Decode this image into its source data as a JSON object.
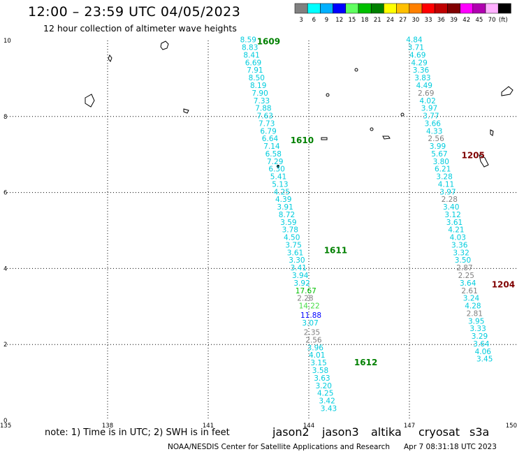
{
  "header": {
    "title": "12:00 – 23:59 UTC 04/05/2023",
    "subtitle": "12 hour collection of altimeter wave heights"
  },
  "colorbar": {
    "labels": [
      "3",
      "6",
      "9",
      "12",
      "15",
      "18",
      "21",
      "24",
      "27",
      "30",
      "33",
      "36",
      "39",
      "42",
      "45",
      "70",
      "(ft)"
    ],
    "colors": [
      "#808080",
      "#00ffff",
      "#00b0ff",
      "#0000ff",
      "#60ff60",
      "#00c000",
      "#008000",
      "#ffff00",
      "#ffc000",
      "#ff8000",
      "#ff0000",
      "#c00000",
      "#800000",
      "#ff00ff",
      "#b000b0",
      "#ffb0ff",
      "#000000"
    ]
  },
  "footer": {
    "note": "note:  1) Time is in UTC;  2) SWH is in feet",
    "credit": "NOAA/NESDIS Center for Satellite Applications and Research",
    "timestamp": "Apr  7 08:31:18 UTC 2023",
    "satellites": [
      {
        "name": "jason2",
        "color": "#0000cc"
      },
      {
        "name": "jason3",
        "color": "#008000"
      },
      {
        "name": "altika",
        "color": "#ff8c00"
      },
      {
        "name": "cryosat",
        "color": "#cc0000"
      },
      {
        "name": "s3a",
        "color": "#800000"
      }
    ]
  },
  "chart_data": {
    "type": "scatter",
    "xlabel": "",
    "ylabel": "",
    "xlim": [
      135,
      150
    ],
    "ylim": [
      0,
      10
    ],
    "x_ticks": [
      "135",
      "138",
      "141",
      "144",
      "147",
      "150"
    ],
    "y_ticks": [
      "0",
      "2",
      "4",
      "6",
      "8",
      "10"
    ],
    "grid": true,
    "tracks": [
      {
        "satellite": "jason3",
        "passes": [
          {
            "label": "1609",
            "lon": 142.8,
            "lat": 9.9
          },
          {
            "label": "1610",
            "lon": 143.8,
            "lat": 7.3
          },
          {
            "label": "1611",
            "lon": 144.8,
            "lat": 4.4
          },
          {
            "label": "1612",
            "lon": 145.7,
            "lat": 1.45
          }
        ],
        "points": [
          {
            "value": "8.59",
            "lon": 141.95,
            "lat": 9.95
          },
          {
            "value": "8.83",
            "lon": 142.0,
            "lat": 9.75
          },
          {
            "value": "8.41",
            "lon": 142.05,
            "lat": 9.55
          },
          {
            "value": "6.69",
            "lon": 142.1,
            "lat": 9.35
          },
          {
            "value": "7.91",
            "lon": 142.15,
            "lat": 9.15
          },
          {
            "value": "8.50",
            "lon": 142.2,
            "lat": 8.95
          },
          {
            "value": "8.19",
            "lon": 142.25,
            "lat": 8.75
          },
          {
            "value": "7.90",
            "lon": 142.3,
            "lat": 8.55
          },
          {
            "value": "7.33",
            "lon": 142.35,
            "lat": 8.35
          },
          {
            "value": "7.88",
            "lon": 142.4,
            "lat": 8.15
          },
          {
            "value": "7.63",
            "lon": 142.45,
            "lat": 7.95
          },
          {
            "value": "7.73",
            "lon": 142.5,
            "lat": 7.75
          },
          {
            "value": "6.79",
            "lon": 142.55,
            "lat": 7.55
          },
          {
            "value": "6.64",
            "lon": 142.6,
            "lat": 7.35
          },
          {
            "value": "7.14",
            "lon": 142.65,
            "lat": 7.15
          },
          {
            "value": "6.58",
            "lon": 142.7,
            "lat": 6.95
          },
          {
            "value": "7.29",
            "lon": 142.75,
            "lat": 6.75
          },
          {
            "value": "6.30",
            "lon": 142.8,
            "lat": 6.55
          },
          {
            "value": "5.41",
            "lon": 142.85,
            "lat": 6.35
          },
          {
            "value": "5.13",
            "lon": 142.9,
            "lat": 6.15
          },
          {
            "value": "4.25",
            "lon": 142.95,
            "lat": 5.95
          },
          {
            "value": "4.39",
            "lon": 143.0,
            "lat": 5.75
          },
          {
            "value": "3.91",
            "lon": 143.05,
            "lat": 5.55
          },
          {
            "value": "8.72",
            "lon": 143.1,
            "lat": 5.35
          },
          {
            "value": "3.59",
            "lon": 143.15,
            "lat": 5.15
          },
          {
            "value": "3.78",
            "lon": 143.2,
            "lat": 4.95
          },
          {
            "value": "4.50",
            "lon": 143.25,
            "lat": 4.75
          },
          {
            "value": "3.75",
            "lon": 143.3,
            "lat": 4.55
          },
          {
            "value": "3.61",
            "lon": 143.35,
            "lat": 4.35
          },
          {
            "value": "3.30",
            "lon": 143.4,
            "lat": 4.15
          },
          {
            "value": "3.41",
            "lon": 143.45,
            "lat": 3.95
          },
          {
            "value": "3.94",
            "lon": 143.5,
            "lat": 3.75
          },
          {
            "value": "3.92",
            "lon": 143.55,
            "lat": 3.55
          },
          {
            "value": "17.67",
            "lon": 143.6,
            "lat": 3.35
          },
          {
            "value": "2.28",
            "lon": 143.65,
            "lat": 3.15
          },
          {
            "value": "14.22",
            "lon": 143.7,
            "lat": 2.95
          },
          {
            "value": "11.88",
            "lon": 143.75,
            "lat": 2.7
          },
          {
            "value": "3.07",
            "lon": 143.8,
            "lat": 2.5
          },
          {
            "value": "2.35",
            "lon": 143.85,
            "lat": 2.25
          },
          {
            "value": "2.56",
            "lon": 143.9,
            "lat": 2.05
          },
          {
            "value": "3.96",
            "lon": 143.95,
            "lat": 1.85
          },
          {
            "value": "4.01",
            "lon": 144.0,
            "lat": 1.65
          },
          {
            "value": "3.15",
            "lon": 144.05,
            "lat": 1.45
          },
          {
            "value": "3.58",
            "lon": 144.1,
            "lat": 1.25
          },
          {
            "value": "3.63",
            "lon": 144.15,
            "lat": 1.05
          },
          {
            "value": "3.20",
            "lon": 144.2,
            "lat": 0.85
          },
          {
            "value": "4.25",
            "lon": 144.25,
            "lat": 0.65
          },
          {
            "value": "3.42",
            "lon": 144.3,
            "lat": 0.45
          },
          {
            "value": "3.43",
            "lon": 144.35,
            "lat": 0.25
          }
        ]
      },
      {
        "satellite": "s3a",
        "passes": [
          {
            "label": "1205",
            "lon": 148.9,
            "lat": 6.9
          },
          {
            "label": "1204",
            "lon": 149.8,
            "lat": 3.5
          }
        ],
        "points": [
          {
            "value": "4.84",
            "lon": 146.9,
            "lat": 9.95
          },
          {
            "value": "3.71",
            "lon": 146.95,
            "lat": 9.75
          },
          {
            "value": "4.69",
            "lon": 147.0,
            "lat": 9.55
          },
          {
            "value": "4.29",
            "lon": 147.05,
            "lat": 9.35
          },
          {
            "value": "3.36",
            "lon": 147.1,
            "lat": 9.15
          },
          {
            "value": "3.83",
            "lon": 147.15,
            "lat": 8.95
          },
          {
            "value": "4.49",
            "lon": 147.2,
            "lat": 8.75
          },
          {
            "value": "2.69",
            "lon": 147.25,
            "lat": 8.55
          },
          {
            "value": "4.02",
            "lon": 147.3,
            "lat": 8.35
          },
          {
            "value": "3.97",
            "lon": 147.35,
            "lat": 8.15
          },
          {
            "value": "3.77",
            "lon": 147.4,
            "lat": 7.95
          },
          {
            "value": "3.66",
            "lon": 147.45,
            "lat": 7.75
          },
          {
            "value": "4.33",
            "lon": 147.5,
            "lat": 7.55
          },
          {
            "value": "2.56",
            "lon": 147.55,
            "lat": 7.35
          },
          {
            "value": "3.99",
            "lon": 147.6,
            "lat": 7.15
          },
          {
            "value": "5.67",
            "lon": 147.65,
            "lat": 6.95
          },
          {
            "value": "3.80",
            "lon": 147.7,
            "lat": 6.75
          },
          {
            "value": "6.21",
            "lon": 147.75,
            "lat": 6.55
          },
          {
            "value": "3.28",
            "lon": 147.8,
            "lat": 6.35
          },
          {
            "value": "4.11",
            "lon": 147.85,
            "lat": 6.15
          },
          {
            "value": "3.97",
            "lon": 147.9,
            "lat": 5.95
          },
          {
            "value": "2.28",
            "lon": 147.95,
            "lat": 5.75
          },
          {
            "value": "3.40",
            "lon": 148.0,
            "lat": 5.55
          },
          {
            "value": "3.12",
            "lon": 148.05,
            "lat": 5.35
          },
          {
            "value": "3.61",
            "lon": 148.1,
            "lat": 5.15
          },
          {
            "value": "4.21",
            "lon": 148.15,
            "lat": 4.95
          },
          {
            "value": "4.03",
            "lon": 148.2,
            "lat": 4.75
          },
          {
            "value": "3.36",
            "lon": 148.25,
            "lat": 4.55
          },
          {
            "value": "3.32",
            "lon": 148.3,
            "lat": 4.35
          },
          {
            "value": "3.50",
            "lon": 148.35,
            "lat": 4.15
          },
          {
            "value": "2.87",
            "lon": 148.4,
            "lat": 3.95
          },
          {
            "value": "2.25",
            "lon": 148.45,
            "lat": 3.75
          },
          {
            "value": "3.64",
            "lon": 148.5,
            "lat": 3.55
          },
          {
            "value": "2.61",
            "lon": 148.55,
            "lat": 3.35
          },
          {
            "value": "3.24",
            "lon": 148.6,
            "lat": 3.15
          },
          {
            "value": "4.28",
            "lon": 148.65,
            "lat": 2.95
          },
          {
            "value": "2.81",
            "lon": 148.7,
            "lat": 2.75
          },
          {
            "value": "3.95",
            "lon": 148.75,
            "lat": 2.55
          },
          {
            "value": "3.33",
            "lon": 148.8,
            "lat": 2.35
          },
          {
            "value": "3.29",
            "lon": 148.85,
            "lat": 2.15
          },
          {
            "value": "3.64",
            "lon": 148.9,
            "lat": 1.95
          },
          {
            "value": "4.06",
            "lon": 148.95,
            "lat": 1.75
          },
          {
            "value": "3.45",
            "lon": 149.0,
            "lat": 1.55
          }
        ]
      }
    ]
  }
}
